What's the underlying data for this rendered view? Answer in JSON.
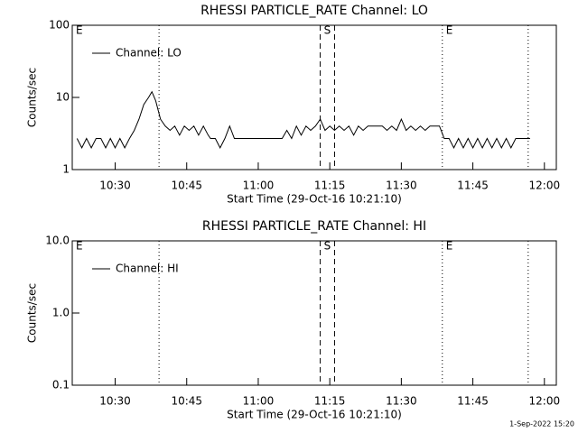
{
  "chart_data": [
    {
      "type": "line",
      "title": "RHESSI PARTICLE_RATE Channel: LO",
      "xlabel": "Start Time (29-Oct-16 10:21:10)",
      "ylabel": "Counts/sec",
      "log_y": true,
      "xlim": [
        621,
        722.5
      ],
      "ylim": [
        1,
        100
      ],
      "xticks": [
        {
          "value": 630,
          "label": "10:30"
        },
        {
          "value": 645,
          "label": "10:45"
        },
        {
          "value": 660,
          "label": "11:00"
        },
        {
          "value": 675,
          "label": "11:15"
        },
        {
          "value": 690,
          "label": "11:30"
        },
        {
          "value": 705,
          "label": "11:45"
        },
        {
          "value": 720,
          "label": "12:00"
        }
      ],
      "yticks": [
        1,
        10,
        100
      ],
      "markers": [
        {
          "x": 639.2,
          "style": "dotted"
        },
        {
          "x": 673.0,
          "style": "dashed"
        },
        {
          "x": 676.0,
          "style": "dashed"
        },
        {
          "x": 698.6,
          "style": "dotted"
        },
        {
          "x": 716.6,
          "style": "dotted"
        }
      ],
      "annotations": [
        {
          "x": 621,
          "text": "E"
        },
        {
          "x": 673.0,
          "text": "S"
        },
        {
          "x": 698.6,
          "text": "E"
        }
      ],
      "legend": "upper left",
      "series": [
        {
          "name": "Channel: LO",
          "color": "#000000",
          "x": [
            622,
            623,
            624,
            625,
            626,
            627,
            628,
            629,
            630,
            631,
            632,
            633,
            634,
            635,
            636,
            637,
            637.7,
            638.5,
            639.5,
            640.5,
            641.5,
            642.5,
            643.5,
            644.5,
            645.5,
            646.5,
            647.5,
            648.5,
            649.5,
            650,
            651,
            652,
            653,
            654,
            655,
            656,
            657,
            658,
            659,
            660,
            661,
            662,
            663,
            664,
            665,
            666,
            667,
            668,
            669,
            670,
            671,
            672,
            673,
            674,
            675,
            676,
            677,
            678,
            679,
            680,
            681,
            682,
            683,
            684,
            685,
            686,
            687,
            688,
            689,
            690,
            691,
            692,
            693,
            694,
            695,
            696,
            697,
            698,
            699,
            700,
            701,
            702,
            703,
            704,
            705,
            706,
            707,
            708,
            709,
            710,
            711,
            712,
            713,
            714,
            715,
            716,
            717
          ],
          "values": [
            2.7,
            2,
            2.7,
            2,
            2.7,
            2.7,
            2,
            2.7,
            2,
            2.7,
            2,
            2.7,
            3.5,
            5,
            8,
            10,
            12,
            9,
            5,
            4,
            3.5,
            4,
            3,
            4,
            3.5,
            4,
            3,
            4,
            3,
            2.7,
            2.7,
            2,
            2.7,
            4,
            2.7,
            2.7,
            2.7,
            2.7,
            2.7,
            2.7,
            2.7,
            2.7,
            2.7,
            2.7,
            2.7,
            3.5,
            2.7,
            4,
            3,
            4,
            3.5,
            4,
            5,
            3.5,
            4,
            3.5,
            4,
            3.5,
            4,
            3,
            4,
            3.5,
            4,
            4,
            4,
            4,
            3.5,
            4,
            3.5,
            5,
            3.5,
            4,
            3.5,
            4,
            3.5,
            4,
            4,
            4,
            2.7,
            2.7,
            2,
            2.7,
            2,
            2.7,
            2,
            2.7,
            2,
            2.7,
            2,
            2.7,
            2,
            2.7,
            2,
            2.7,
            2.7,
            2.7,
            2.7
          ]
        }
      ]
    },
    {
      "type": "line",
      "title": "RHESSI PARTICLE_RATE Channel: HI",
      "xlabel": "Start Time (29-Oct-16 10:21:10)",
      "ylabel": "Counts/sec",
      "log_y": true,
      "xlim": [
        621,
        722.5
      ],
      "ylim": [
        0.1,
        10
      ],
      "xticks": [
        {
          "value": 630,
          "label": "10:30"
        },
        {
          "value": 645,
          "label": "10:45"
        },
        {
          "value": 660,
          "label": "11:00"
        },
        {
          "value": 675,
          "label": "11:15"
        },
        {
          "value": 690,
          "label": "11:30"
        },
        {
          "value": 705,
          "label": "11:45"
        },
        {
          "value": 720,
          "label": "12:00"
        }
      ],
      "yticks": [
        0.1,
        {
          "value": 1,
          "label": "1.0"
        },
        {
          "value": 10,
          "label": "10.0"
        }
      ],
      "markers": [
        {
          "x": 639.2,
          "style": "dotted"
        },
        {
          "x": 673.0,
          "style": "dashed"
        },
        {
          "x": 676.0,
          "style": "dashed"
        },
        {
          "x": 698.6,
          "style": "dotted"
        },
        {
          "x": 716.6,
          "style": "dotted"
        }
      ],
      "annotations": [
        {
          "x": 621,
          "text": "E"
        },
        {
          "x": 673.0,
          "text": "S"
        },
        {
          "x": 698.6,
          "text": "E"
        }
      ],
      "legend": "upper left",
      "series": [
        {
          "name": "Channel: HI",
          "color": "#000000",
          "x": [],
          "values": []
        }
      ]
    }
  ],
  "footer": "1-Sep-2022 15:20"
}
